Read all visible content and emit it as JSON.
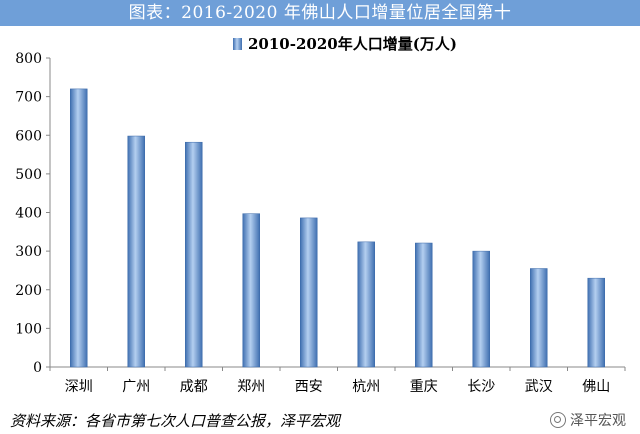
{
  "header": {
    "title": "图表：2016-2020 年佛山人口增量位居全国第十"
  },
  "chart_data": {
    "type": "bar",
    "legend": "2010-2020年人口增量(万人)",
    "legend_position": "top-center",
    "categories": [
      "深圳",
      "广州",
      "成都",
      "郑州",
      "西安",
      "杭州",
      "重庆",
      "长沙",
      "武汉",
      "佛山"
    ],
    "series": [
      {
        "name": "2010-2020年人口增量(万人)",
        "values": [
          720,
          598,
          582,
          397,
          386,
          324,
          321,
          300,
          255,
          230
        ]
      }
    ],
    "ylim": [
      0,
      800
    ],
    "yticks": [
      0,
      100,
      200,
      300,
      400,
      500,
      600,
      700,
      800
    ],
    "grid": false,
    "colors": {
      "bar_light": "#a9c6ea",
      "bar_dark": "#3f6fb0",
      "title_bg": "#6f9fd8"
    }
  },
  "footer": {
    "source": "资料来源：各省市第七次人口普查公报，泽平宏观",
    "watermark": "泽平宏观"
  }
}
